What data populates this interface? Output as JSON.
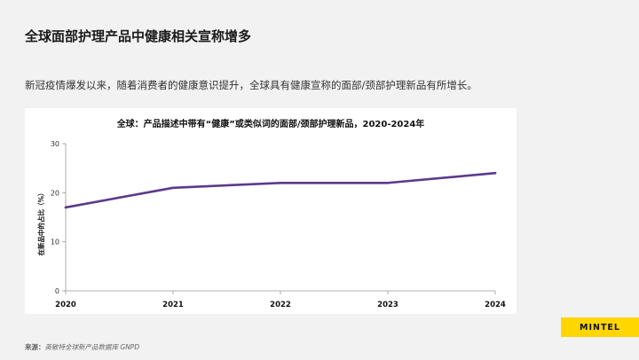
{
  "header": {
    "title": "全球面部护理产品中健康相关宣称增多",
    "subtitle": "新冠疫情爆发以来，随着消费者的健康意识提升，全球具有健康宣称的面部/颈部护理新品有所增长。"
  },
  "chart_data": {
    "type": "line",
    "title": "全球：产品描述中带有“健康”或类似词的面部/颈部护理新品，2020-2024年",
    "xlabel": "",
    "ylabel": "在新品中的占比（%）",
    "x": [
      "2020",
      "2021",
      "2022",
      "2023",
      "2024"
    ],
    "series": [
      {
        "values": [
          17,
          21,
          22,
          22,
          24
        ]
      }
    ],
    "ylim": [
      0,
      30
    ],
    "yticks": [
      0,
      10,
      20,
      30
    ],
    "grid": false,
    "line_color": "#5b3a8c"
  },
  "footer": {
    "source_label": "来源：",
    "source_text": "英敏特全球新产品数据库 GNPD",
    "brand": "MINTEL",
    "brand_color": "#ffd600"
  }
}
